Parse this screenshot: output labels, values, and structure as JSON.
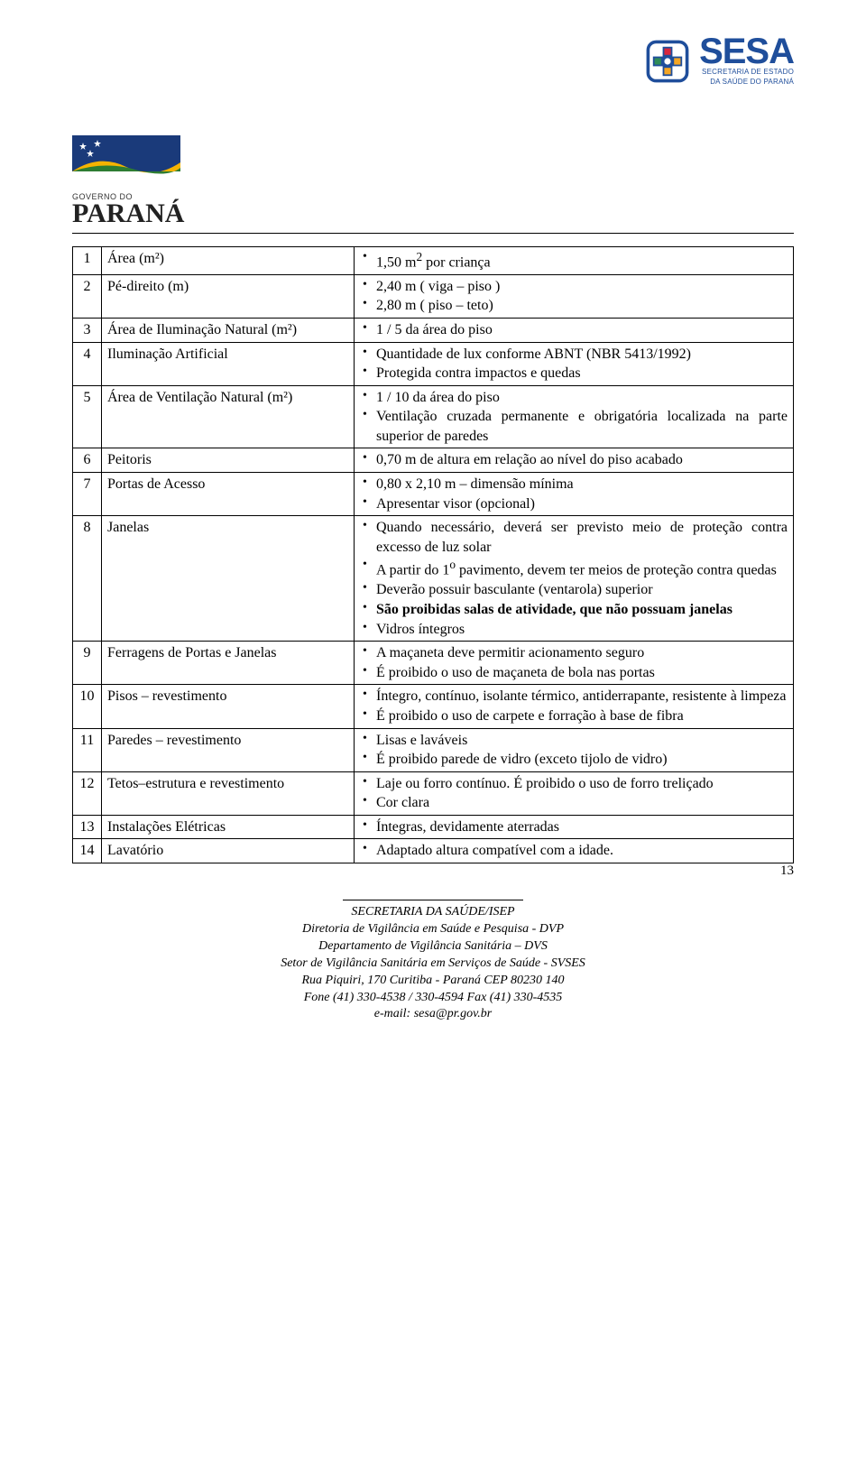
{
  "header": {
    "sesa": {
      "name": "SESA",
      "sub1": "SECRETARIA DE ESTADO",
      "sub2": "DA SAÚDE DO PARANÁ",
      "cross_blue": "#1f4e9b",
      "cross_red": "#d7263d",
      "cross_yellow": "#f5a623",
      "cross_green": "#2e8b57"
    },
    "parana": {
      "gov_line": "GOVERNO DO",
      "state": "PARANÁ",
      "flag_blue": "#1a3a7a",
      "flag_yellow": "#f5b300",
      "flag_green": "#2e7d32"
    }
  },
  "rows": [
    {
      "n": "1",
      "label": "Área (m²)",
      "items": [
        "1,50 m2 por criança"
      ],
      "sup_first": true
    },
    {
      "n": "2",
      "label": "Pé-direito (m)",
      "items": [
        "2,40 m  ( viga – piso )",
        "2,80 m  ( piso – teto)"
      ]
    },
    {
      "n": "3",
      "label": "Área de Iluminação Natural (m²)",
      "items": [
        "1 / 5 da área do piso"
      ]
    },
    {
      "n": "4",
      "label": "Iluminação Artificial",
      "items": [
        "Quantidade de lux conforme ABNT (NBR 5413/1992)",
        "Protegida contra impactos e quedas"
      ]
    },
    {
      "n": "5",
      "label": "Área de Ventilação Natural (m²)",
      "items": [
        "1 / 10 da área do piso",
        "Ventilação cruzada permanente e obrigatória localizada na parte superior de paredes"
      ]
    },
    {
      "n": "6",
      "label": "Peitoris",
      "items": [
        "0,70 m  de altura em relação ao nível do piso acabado"
      ]
    },
    {
      "n": "7",
      "label": "Portas de Acesso",
      "items": [
        "0,80 x 2,10 m – dimensão mínima",
        "Apresentar  visor (opcional)"
      ]
    },
    {
      "n": "8",
      "label": "Janelas",
      "items": [
        "Quando necessário, deverá ser previsto meio de proteção contra excesso de luz solar",
        "A partir do 1o pavimento, devem ter meios de proteção contra quedas",
        "Deverão possuir basculante (ventarola) superior",
        "<span class=\"bold\">São proibidas  salas de atividade, que não possuam janelas</span>",
        "Vidros íntegros"
      ],
      "sup_second": true
    },
    {
      "n": "9",
      "label": "Ferragens de Portas e Janelas",
      "items": [
        "A maçaneta deve permitir acionamento seguro",
        "É proibido o uso de maçaneta de bola nas portas"
      ]
    },
    {
      "n": "10",
      "label": "Pisos – revestimento",
      "items": [
        "Íntegro, contínuo, isolante térmico, antiderrapante, resistente à limpeza",
        "É proibido o uso de carpete e forração à base de fibra"
      ]
    },
    {
      "n": "11",
      "label": "Paredes – revestimento",
      "items": [
        "Lisas e laváveis",
        "É proibido parede de vidro (exceto tijolo de vidro)"
      ]
    },
    {
      "n": "12",
      "label": "Tetos–estrutura e revestimento",
      "items": [
        "Laje ou forro contínuo. É proibido o uso de forro treliçado",
        "Cor clara"
      ]
    },
    {
      "n": "13",
      "label": "Instalações Elétricas",
      "items": [
        "Íntegras, devidamente aterradas"
      ]
    },
    {
      "n": "14",
      "label": "Lavatório",
      "items": [
        "Adaptado altura compatível com a idade."
      ]
    }
  ],
  "page_number": "13",
  "footer": {
    "l1": "SECRETARIA DA SAÚDE/ISEP",
    "l2": "Diretoria de Vigilância em Saúde e Pesquisa - DVP",
    "l3": "Departamento de Vigilância Sanitária – DVS",
    "l4": "Setor de Vigilância Sanitária em Serviços de Saúde - SVSES",
    "l5": "Rua Piquiri, 170  Curitiba -  Paraná  CEP 80230 140",
    "l6": "Fone (41) 330-4538 / 330-4594  Fax (41) 330-4535",
    "l7": "e-mail: sesa@pr.gov.br"
  }
}
